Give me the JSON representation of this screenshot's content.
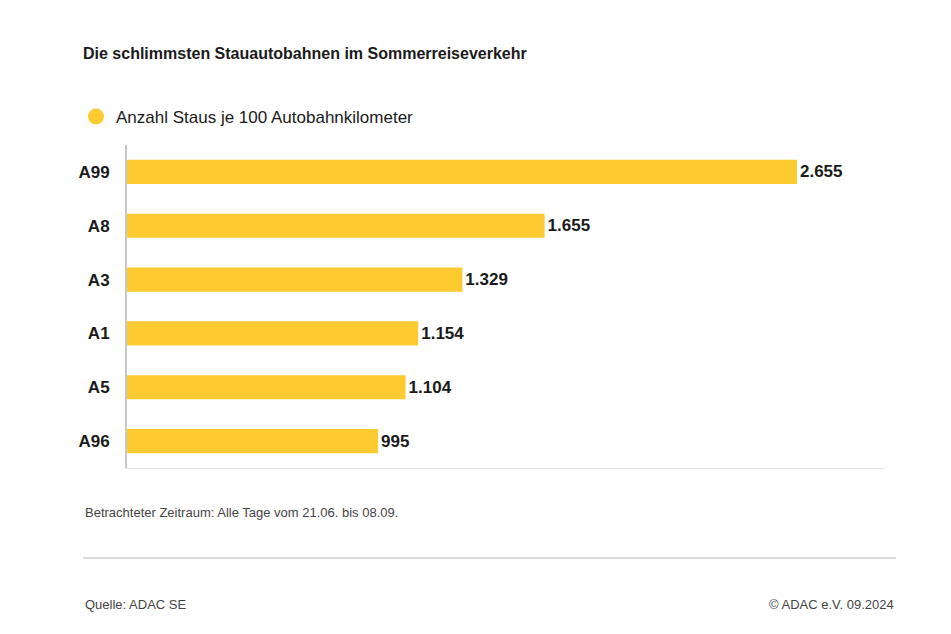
{
  "chart_data": {
    "type": "bar",
    "title": "Die schlimmsten Stauautobahnen im Sommerreiseverkehr",
    "orientation": "horizontal",
    "categories": [
      "A99",
      "A8",
      "A3",
      "A1",
      "A5",
      "A96"
    ],
    "series": [
      {
        "name": "Anzahl Staus je 100 Autobahnkilometer",
        "color": "#fdca30",
        "values": [
          2655,
          1655,
          1329,
          1154,
          1104,
          995
        ],
        "value_labels": [
          "2.655",
          "1.655",
          "1.329",
          "1.154",
          "1.104",
          "995"
        ]
      }
    ],
    "xlim": [
      0,
      3000
    ],
    "xticks": [],
    "tick_labels": "y",
    "grid": false,
    "legend": "top left",
    "data_labels": true,
    "annotations": [
      "Betrachteter Zeitraum: Alle Tage vom 21.06. bis 08.09.",
      "Quelle: ADAC SE",
      "© ADAC e.V. 09.2024"
    ]
  }
}
